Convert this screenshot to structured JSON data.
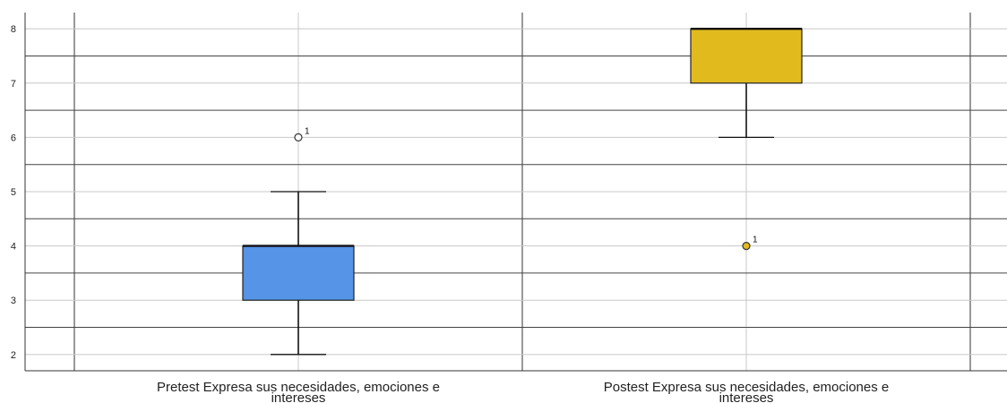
{
  "chart_data": {
    "type": "boxplot",
    "title": "",
    "xlabel": "",
    "ylabel": "",
    "ylim": [
      1.7,
      8.3
    ],
    "yticks": [
      2,
      3,
      4,
      5,
      6,
      7,
      8
    ],
    "grid": true,
    "categories": [
      [
        "Pretest Expresa sus necesidades, emociones e",
        "intereses"
      ],
      [
        "Postest Expresa sus necesidades, emociones e",
        "intereses"
      ]
    ],
    "boxes": [
      {
        "whisker_low": 2,
        "q1": 3,
        "median": 4,
        "q3": 4,
        "whisker_high": 5,
        "color": "#5594E6",
        "outliers": [
          {
            "value": 6,
            "label": "1"
          }
        ]
      },
      {
        "whisker_low": 6,
        "q1": 7,
        "median": 8,
        "q3": 8,
        "whisker_high": 8,
        "color": "#E1BB1E",
        "outliers": [
          {
            "value": 4,
            "label": "1"
          }
        ]
      }
    ]
  }
}
